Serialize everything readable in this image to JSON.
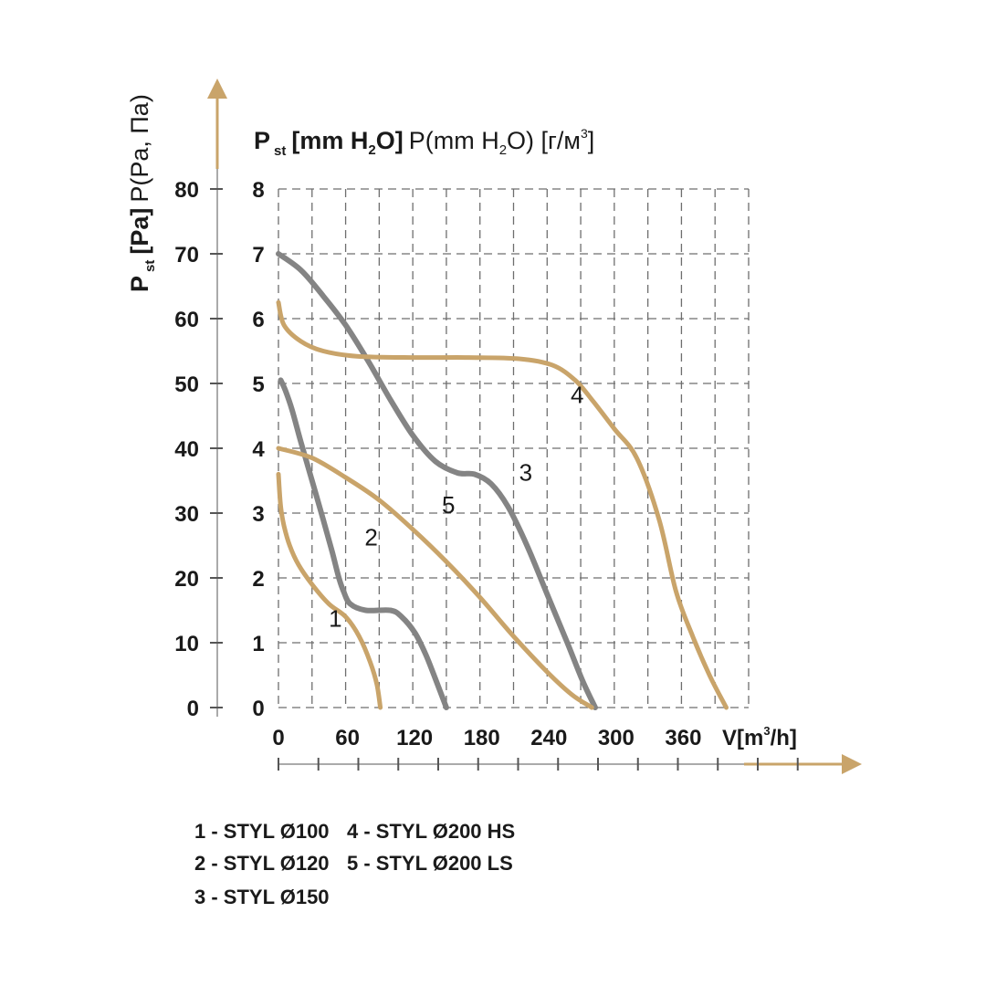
{
  "chart_data": {
    "type": "line",
    "title_left": "P st [Pa] P(Pa, Па)",
    "title_top": "P st [mm H2O] P(mm H2O) [г/м3]",
    "ylabel_pa": {
      "bold": "P",
      "sub": "st",
      "unit_bold": "[Pa]",
      "rest": "P(Pa, Па)"
    },
    "ylabel_mm": {
      "bold": "P",
      "sub": "st",
      "unit_bold_1": "[mm H",
      "unit_sub": "2",
      "unit_bold_2": "O]",
      "rest_1": "P(mm H",
      "rest_sub": "2",
      "rest_2": "O) [г/м",
      "rest_sup": "3",
      "rest_3": "]"
    },
    "xlabel": {
      "main_1": "V[m",
      "sup": "3",
      "main_2": "/h]"
    },
    "x_ticks": [
      "0",
      "60",
      "120",
      "180",
      "240",
      "300",
      "360"
    ],
    "x_tick_values": [
      0,
      60,
      120,
      180,
      240,
      300,
      360
    ],
    "xlim": [
      0,
      420
    ],
    "y_ticks_pa": [
      "0",
      "10",
      "20",
      "30",
      "40",
      "50",
      "60",
      "70",
      "80"
    ],
    "y_ticks_mm": [
      "0",
      "1",
      "2",
      "3",
      "4",
      "5",
      "6",
      "7",
      "8"
    ],
    "y_tick_values": [
      0,
      10,
      20,
      30,
      40,
      50,
      60,
      70,
      80
    ],
    "ylim": [
      0,
      80
    ],
    "grid": true,
    "series": [
      {
        "name": "1",
        "color": "#c9a46a",
        "label_at": [
          45,
          12.5
        ],
        "points": [
          [
            0,
            36
          ],
          [
            2,
            31
          ],
          [
            5,
            28
          ],
          [
            10,
            25
          ],
          [
            18,
            22
          ],
          [
            30,
            19
          ],
          [
            45,
            16
          ],
          [
            60,
            14
          ],
          [
            72,
            11
          ],
          [
            82,
            7
          ],
          [
            88,
            3.5
          ],
          [
            91,
            0
          ]
        ]
      },
      {
        "name": "2",
        "color": "#848484",
        "label_at": [
          77,
          25
        ],
        "points": [
          [
            2,
            50.5
          ],
          [
            6,
            49
          ],
          [
            12,
            46
          ],
          [
            20,
            41
          ],
          [
            30,
            35
          ],
          [
            40,
            29
          ],
          [
            48,
            24
          ],
          [
            54,
            20
          ],
          [
            58,
            18
          ],
          [
            64,
            16
          ],
          [
            78,
            15
          ],
          [
            100,
            15
          ],
          [
            110,
            14
          ],
          [
            122,
            11.5
          ],
          [
            132,
            8
          ],
          [
            140,
            4.5
          ],
          [
            150,
            0
          ]
        ]
      },
      {
        "name": "3",
        "color": "#848484",
        "label_at": [
          215,
          35
        ],
        "points": [
          [
            0,
            70
          ],
          [
            20,
            67.5
          ],
          [
            40,
            63.5
          ],
          [
            60,
            59
          ],
          [
            80,
            53.5
          ],
          [
            100,
            47.5
          ],
          [
            120,
            42
          ],
          [
            140,
            38
          ],
          [
            160,
            36.2
          ],
          [
            175,
            36
          ],
          [
            190,
            34.5
          ],
          [
            205,
            31
          ],
          [
            222,
            25
          ],
          [
            240,
            17.5
          ],
          [
            258,
            10
          ],
          [
            272,
            4
          ],
          [
            283,
            0
          ]
        ]
      },
      {
        "name": "4",
        "color": "#c9a46a",
        "label_at": [
          261,
          47
        ],
        "points": [
          [
            0,
            62.5
          ],
          [
            5,
            59
          ],
          [
            20,
            56.5
          ],
          [
            40,
            55
          ],
          [
            70,
            54.2
          ],
          [
            120,
            54
          ],
          [
            170,
            54
          ],
          [
            215,
            53.8
          ],
          [
            245,
            52.8
          ],
          [
            265,
            50.5
          ],
          [
            280,
            47.5
          ],
          [
            300,
            43
          ],
          [
            320,
            38.5
          ],
          [
            340,
            29
          ],
          [
            355,
            18
          ],
          [
            370,
            11
          ],
          [
            385,
            5
          ],
          [
            400,
            0
          ]
        ]
      },
      {
        "name": "5",
        "color": "#c9a46a",
        "label_at": [
          146,
          30
        ],
        "points": [
          [
            0,
            40
          ],
          [
            30,
            38.5
          ],
          [
            60,
            35.5
          ],
          [
            90,
            32
          ],
          [
            120,
            27.5
          ],
          [
            150,
            22.5
          ],
          [
            180,
            17
          ],
          [
            210,
            11
          ],
          [
            240,
            5.5
          ],
          [
            262,
            2
          ],
          [
            280,
            0
          ]
        ]
      }
    ],
    "legend": [
      "1 - STYL Ø100",
      "2 - STYL Ø120",
      "3 - STYL Ø150",
      "4 - STYL Ø200 HS",
      "5 - STYL Ø200 LS"
    ]
  }
}
